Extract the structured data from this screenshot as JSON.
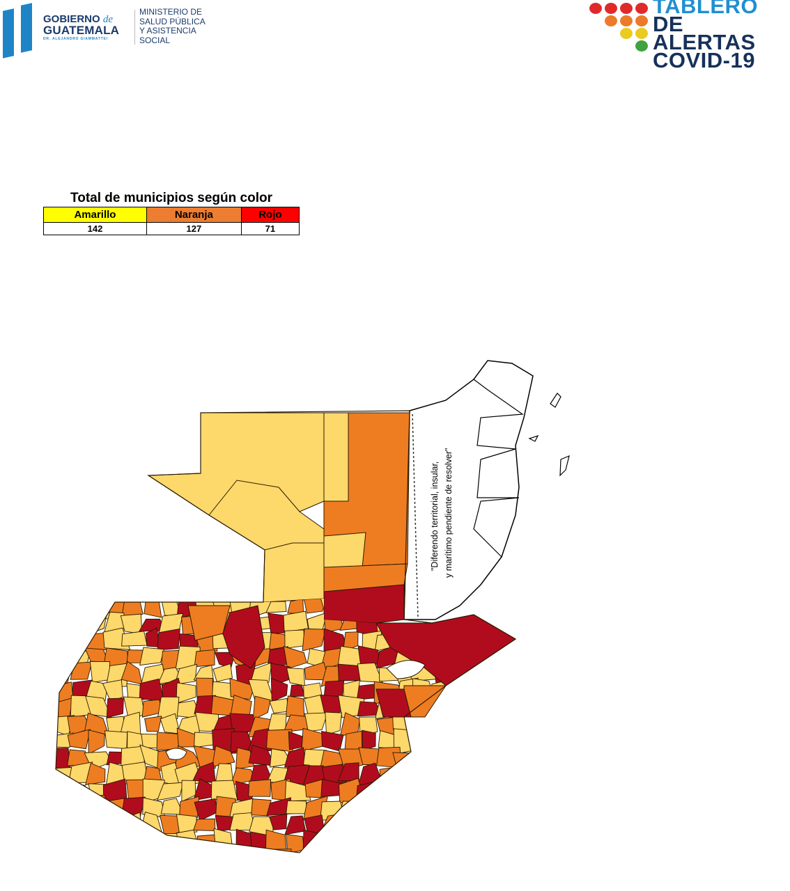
{
  "header": {
    "left_logo": {
      "line1": "GOBIERNO",
      "de": "de",
      "line2": "GUATEMALA",
      "line3": "DR. ALEJANDRO GIAMMATTEI",
      "ministry": [
        "MINISTERIO DE",
        "SALUD PÚBLICA",
        "Y ASISTENCIA",
        "SOCIAL"
      ],
      "color": "#1f84c6"
    },
    "right_logo": {
      "line1": "TABLERO",
      "line2": "DE ALERTAS",
      "line3": "COVID-19"
    }
  },
  "summary": {
    "title": "Total de municipios según color",
    "columns": [
      {
        "label": "Amarillo",
        "count": "142",
        "color": "#ffff00"
      },
      {
        "label": "Naranja",
        "count": "127",
        "color": "#ed7d31"
      },
      {
        "label": "Rojo",
        "count": "71",
        "color": "#ff0000"
      }
    ]
  },
  "map": {
    "colors": {
      "amarillo": "#fdd86b",
      "naranja": "#ee7d22",
      "rojo": "#b10c1d"
    },
    "belize_note": [
      "\"Diferendo territorial, insular,",
      "y marítimo pendiente de resolver\""
    ]
  }
}
